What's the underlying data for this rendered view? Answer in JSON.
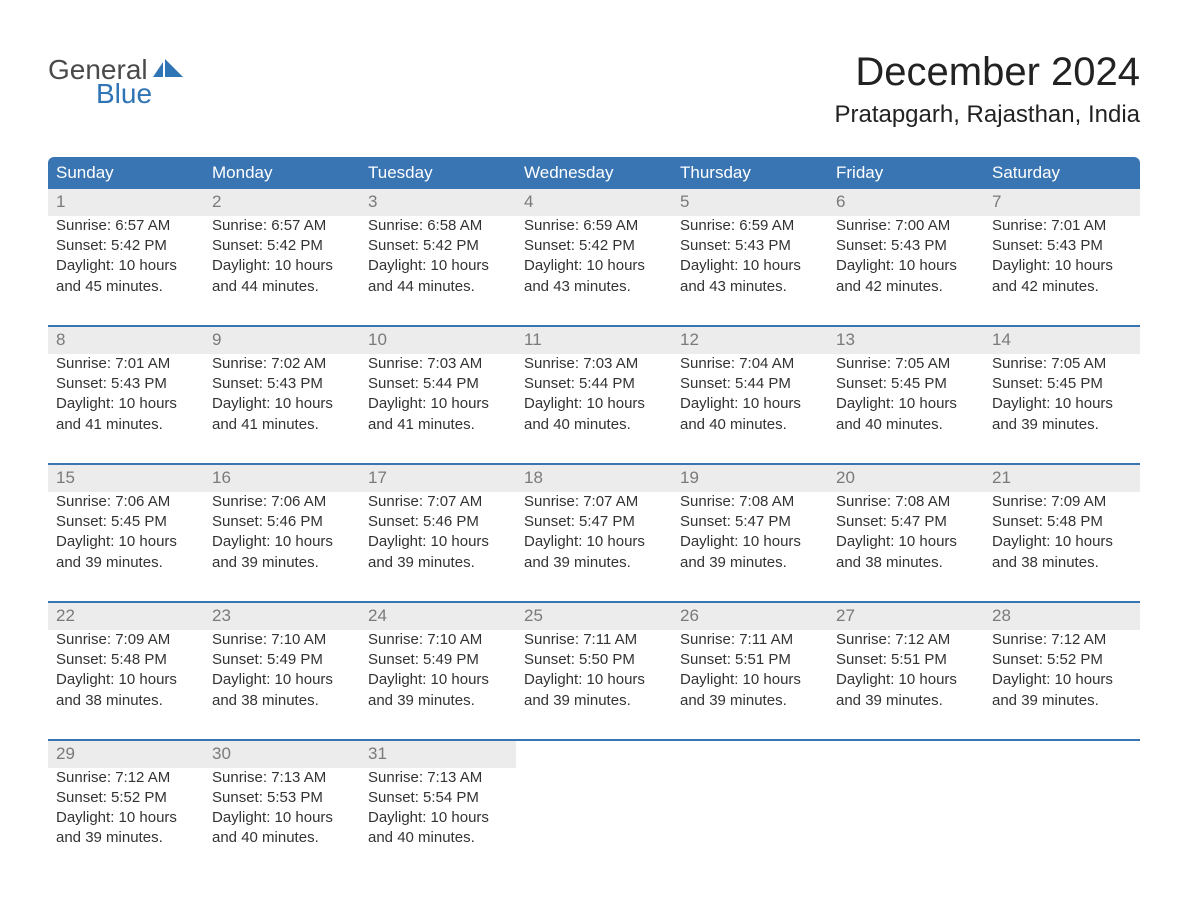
{
  "logo": {
    "word1": "General",
    "word2": "Blue",
    "word1_color": "#4a4a4a",
    "word2_color": "#2f74b5",
    "flag_color": "#2f74b5"
  },
  "title": "December 2024",
  "location": "Pratapgarh, Rajasthan, India",
  "colors": {
    "header_bg": "#3a75b3",
    "header_text": "#ffffff",
    "daynum_bg": "#ececec",
    "daynum_text": "#7a7a7a",
    "body_text": "#333333",
    "rule": "#3a75b3",
    "page_bg": "#ffffff"
  },
  "typography": {
    "title_fontsize": 40,
    "location_fontsize": 24,
    "weekday_fontsize": 17,
    "daynum_fontsize": 17,
    "cell_fontsize": 15
  },
  "weekdays": [
    "Sunday",
    "Monday",
    "Tuesday",
    "Wednesday",
    "Thursday",
    "Friday",
    "Saturday"
  ],
  "labels": {
    "sunrise": "Sunrise:",
    "sunset": "Sunset:",
    "daylight": "Daylight:"
  },
  "weeks": [
    [
      {
        "day": "1",
        "sunrise": "6:57 AM",
        "sunset": "5:42 PM",
        "daylight": "10 hours and 45 minutes."
      },
      {
        "day": "2",
        "sunrise": "6:57 AM",
        "sunset": "5:42 PM",
        "daylight": "10 hours and 44 minutes."
      },
      {
        "day": "3",
        "sunrise": "6:58 AM",
        "sunset": "5:42 PM",
        "daylight": "10 hours and 44 minutes."
      },
      {
        "day": "4",
        "sunrise": "6:59 AM",
        "sunset": "5:42 PM",
        "daylight": "10 hours and 43 minutes."
      },
      {
        "day": "5",
        "sunrise": "6:59 AM",
        "sunset": "5:43 PM",
        "daylight": "10 hours and 43 minutes."
      },
      {
        "day": "6",
        "sunrise": "7:00 AM",
        "sunset": "5:43 PM",
        "daylight": "10 hours and 42 minutes."
      },
      {
        "day": "7",
        "sunrise": "7:01 AM",
        "sunset": "5:43 PM",
        "daylight": "10 hours and 42 minutes."
      }
    ],
    [
      {
        "day": "8",
        "sunrise": "7:01 AM",
        "sunset": "5:43 PM",
        "daylight": "10 hours and 41 minutes."
      },
      {
        "day": "9",
        "sunrise": "7:02 AM",
        "sunset": "5:43 PM",
        "daylight": "10 hours and 41 minutes."
      },
      {
        "day": "10",
        "sunrise": "7:03 AM",
        "sunset": "5:44 PM",
        "daylight": "10 hours and 41 minutes."
      },
      {
        "day": "11",
        "sunrise": "7:03 AM",
        "sunset": "5:44 PM",
        "daylight": "10 hours and 40 minutes."
      },
      {
        "day": "12",
        "sunrise": "7:04 AM",
        "sunset": "5:44 PM",
        "daylight": "10 hours and 40 minutes."
      },
      {
        "day": "13",
        "sunrise": "7:05 AM",
        "sunset": "5:45 PM",
        "daylight": "10 hours and 40 minutes."
      },
      {
        "day": "14",
        "sunrise": "7:05 AM",
        "sunset": "5:45 PM",
        "daylight": "10 hours and 39 minutes."
      }
    ],
    [
      {
        "day": "15",
        "sunrise": "7:06 AM",
        "sunset": "5:45 PM",
        "daylight": "10 hours and 39 minutes."
      },
      {
        "day": "16",
        "sunrise": "7:06 AM",
        "sunset": "5:46 PM",
        "daylight": "10 hours and 39 minutes."
      },
      {
        "day": "17",
        "sunrise": "7:07 AM",
        "sunset": "5:46 PM",
        "daylight": "10 hours and 39 minutes."
      },
      {
        "day": "18",
        "sunrise": "7:07 AM",
        "sunset": "5:47 PM",
        "daylight": "10 hours and 39 minutes."
      },
      {
        "day": "19",
        "sunrise": "7:08 AM",
        "sunset": "5:47 PM",
        "daylight": "10 hours and 39 minutes."
      },
      {
        "day": "20",
        "sunrise": "7:08 AM",
        "sunset": "5:47 PM",
        "daylight": "10 hours and 38 minutes."
      },
      {
        "day": "21",
        "sunrise": "7:09 AM",
        "sunset": "5:48 PM",
        "daylight": "10 hours and 38 minutes."
      }
    ],
    [
      {
        "day": "22",
        "sunrise": "7:09 AM",
        "sunset": "5:48 PM",
        "daylight": "10 hours and 38 minutes."
      },
      {
        "day": "23",
        "sunrise": "7:10 AM",
        "sunset": "5:49 PM",
        "daylight": "10 hours and 38 minutes."
      },
      {
        "day": "24",
        "sunrise": "7:10 AM",
        "sunset": "5:49 PM",
        "daylight": "10 hours and 39 minutes."
      },
      {
        "day": "25",
        "sunrise": "7:11 AM",
        "sunset": "5:50 PM",
        "daylight": "10 hours and 39 minutes."
      },
      {
        "day": "26",
        "sunrise": "7:11 AM",
        "sunset": "5:51 PM",
        "daylight": "10 hours and 39 minutes."
      },
      {
        "day": "27",
        "sunrise": "7:12 AM",
        "sunset": "5:51 PM",
        "daylight": "10 hours and 39 minutes."
      },
      {
        "day": "28",
        "sunrise": "7:12 AM",
        "sunset": "5:52 PM",
        "daylight": "10 hours and 39 minutes."
      }
    ],
    [
      {
        "day": "29",
        "sunrise": "7:12 AM",
        "sunset": "5:52 PM",
        "daylight": "10 hours and 39 minutes."
      },
      {
        "day": "30",
        "sunrise": "7:13 AM",
        "sunset": "5:53 PM",
        "daylight": "10 hours and 40 minutes."
      },
      {
        "day": "31",
        "sunrise": "7:13 AM",
        "sunset": "5:54 PM",
        "daylight": "10 hours and 40 minutes."
      },
      null,
      null,
      null,
      null
    ]
  ]
}
